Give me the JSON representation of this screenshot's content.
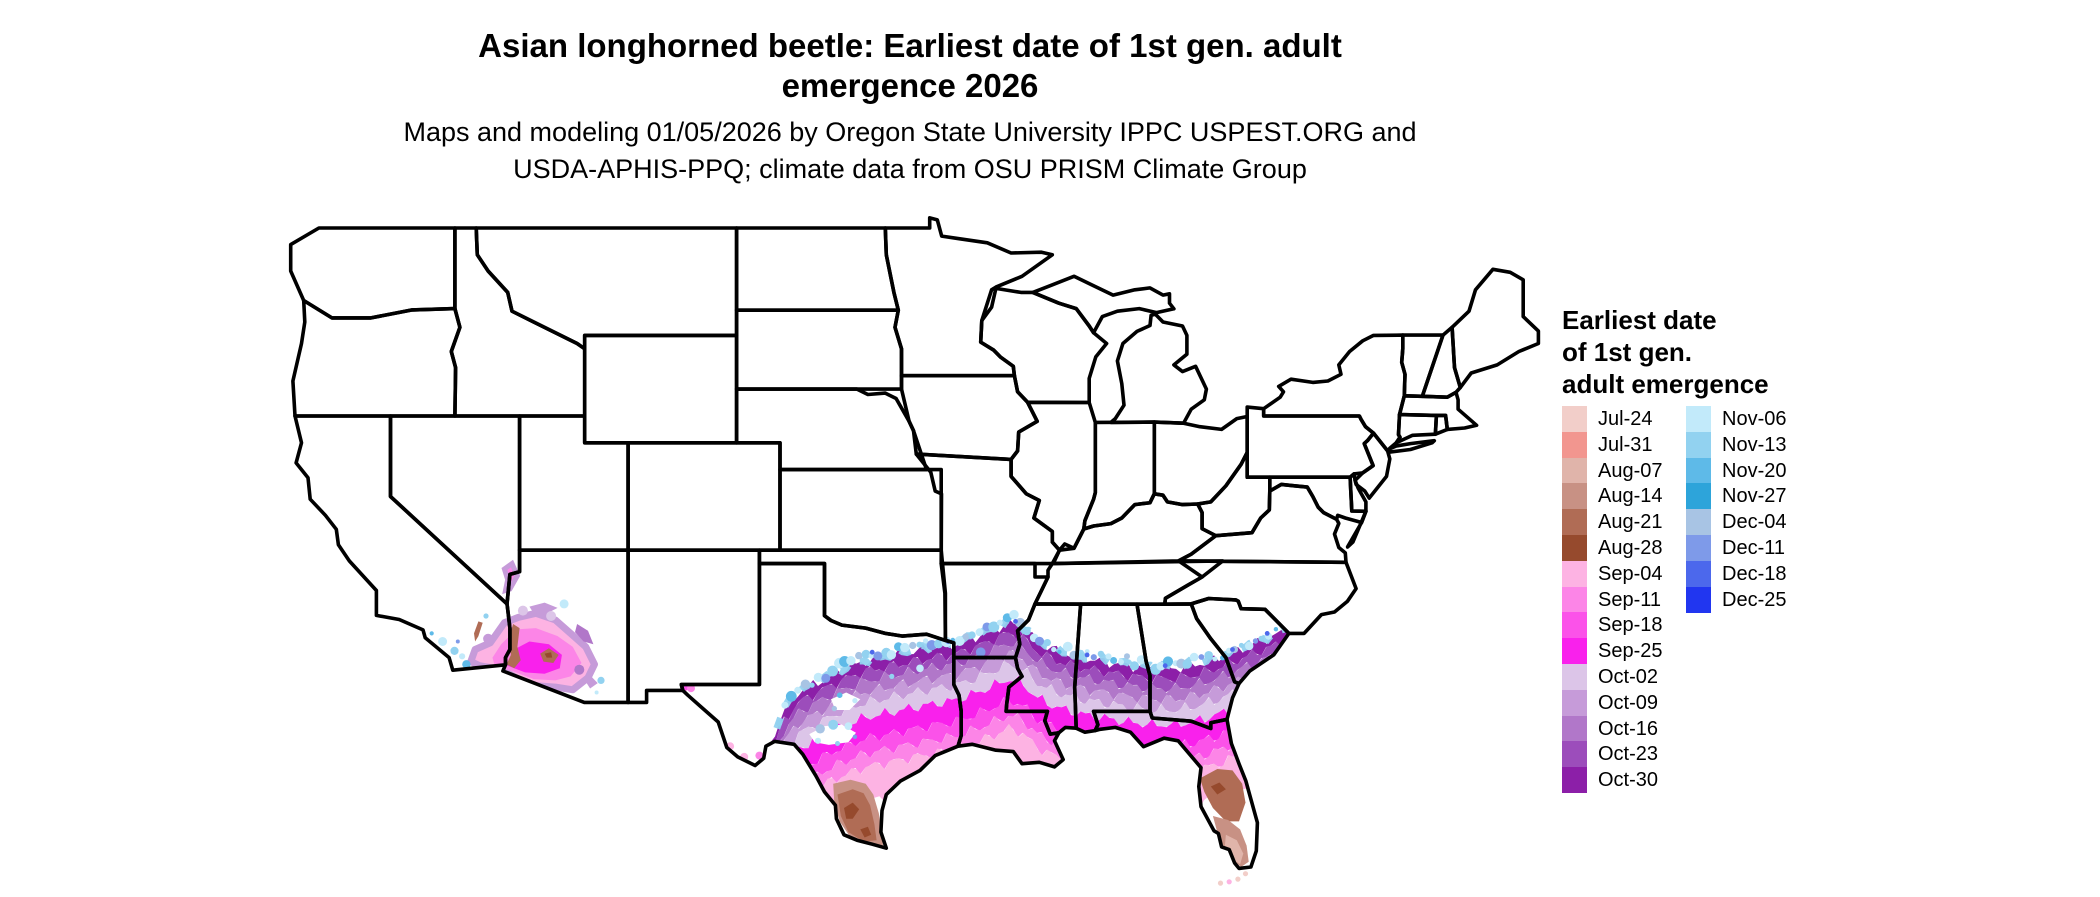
{
  "title": {
    "line1": "Asian longhorned beetle: Earliest date of 1st gen. adult",
    "line2": "emergence 2026"
  },
  "subtitle": {
    "line1": "Maps and modeling 01/05/2026 by Oregon State University IPPC USPEST.ORG and",
    "line2": "USDA-APHIS-PPQ; climate data from OSU PRISM Climate Group"
  },
  "legend": {
    "title_lines": [
      "Earliest date",
      "of 1st gen.",
      "adult emergence"
    ],
    "columns": [
      {
        "entries": [
          {
            "label": "Jul-24",
            "color": "#f2cec9"
          },
          {
            "label": "Jul-31",
            "color": "#f2968f"
          },
          {
            "label": "Aug-07",
            "color": "#e0b4aa"
          },
          {
            "label": "Aug-14",
            "color": "#c89184"
          },
          {
            "label": "Aug-21",
            "color": "#b06c55"
          },
          {
            "label": "Aug-28",
            "color": "#964a2d"
          },
          {
            "label": "Sep-04",
            "color": "#fdb3e3"
          },
          {
            "label": "Sep-11",
            "color": "#fc85e7"
          },
          {
            "label": "Sep-18",
            "color": "#fb52e9"
          },
          {
            "label": "Sep-25",
            "color": "#f921ec"
          },
          {
            "label": "Oct-02",
            "color": "#dcc5e8"
          },
          {
            "label": "Oct-09",
            "color": "#c69bd9"
          },
          {
            "label": "Oct-16",
            "color": "#b177c9"
          },
          {
            "label": "Oct-23",
            "color": "#9c4dbb"
          },
          {
            "label": "Oct-30",
            "color": "#8c1fa8"
          }
        ]
      },
      {
        "entries": [
          {
            "label": "Nov-06",
            "color": "#c2eafa"
          },
          {
            "label": "Nov-13",
            "color": "#92d2f0"
          },
          {
            "label": "Nov-20",
            "color": "#5ebae8"
          },
          {
            "label": "Nov-27",
            "color": "#2da4da"
          },
          {
            "label": "Dec-04",
            "color": "#a8c4e4"
          },
          {
            "label": "Dec-11",
            "color": "#7e9ae9"
          },
          {
            "label": "Dec-18",
            "color": "#4c68ec"
          },
          {
            "label": "Dec-25",
            "color": "#2136f0"
          }
        ]
      }
    ]
  },
  "map": {
    "background": "#ffffff",
    "border_color": "#000000",
    "colored_areas": [
      {
        "area": "southern Texas",
        "earliest_dates": "Aug-14 to Aug-28 core surrounded by Sep-04 to Sep-25 pinks"
      },
      {
        "area": "Gulf Coast band (TX/LA/MS/AL/GA/SC coast)",
        "earliest_dates": "Sep-25 magenta near coast grading to Oct-02 through Oct-30 purples inland with Nov blue speckled fringe"
      },
      {
        "area": "central Florida",
        "earliest_dates": "Aug-21 brown core, Aug-07/Aug-14 in south Florida, Sep pinks/magenta in north Florida"
      },
      {
        "area": "southwest Arizona / southeast California / southern Nevada tip",
        "earliest_dates": "Sep-04 to Sep-25 pinks with Aug-21/Aug-28 brown patches and Oct purple fringe, scattered Nov blue specks"
      },
      {
        "area": "rest of contiguous US",
        "earliest_dates": "no 1st generation adult emergence shown (white)"
      }
    ]
  }
}
